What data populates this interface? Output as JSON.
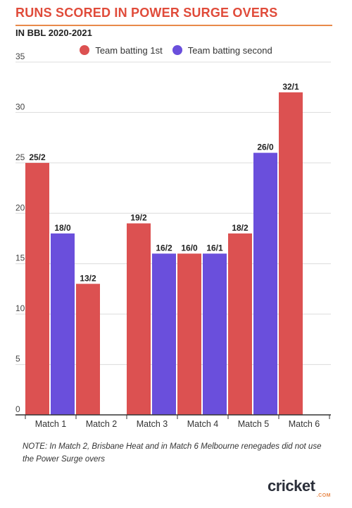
{
  "header": {
    "title": "RUNS SCORED IN POWER SURGE OVERS",
    "subtitle": "IN BBL 2020-2021"
  },
  "note": "NOTE: In Match 2, Brisbane Heat and in Match 6 Melbourne renegades did not use the Power Surge overs",
  "logo": {
    "word": "cricket",
    "suffix": ".COM"
  },
  "colors": {
    "first": "#dc5151",
    "second": "#6a4fdc",
    "accent": "#e04b3a"
  },
  "chart_data": {
    "type": "bar",
    "categories": [
      "Match 1",
      "Match 2",
      "Match 3",
      "Match 4",
      "Match 5",
      "Match 6"
    ],
    "series": [
      {
        "name": "Team batting 1st",
        "values": [
          25,
          13,
          19,
          16,
          18,
          32
        ],
        "labels": [
          "25/2",
          "13/2",
          "19/2",
          "16/0",
          "18/2",
          "32/1"
        ]
      },
      {
        "name": "Team batting second",
        "values": [
          18,
          null,
          16,
          16,
          26,
          null
        ],
        "labels": [
          "18/0",
          "",
          "16/2",
          "16/1",
          "26/0",
          ""
        ]
      }
    ],
    "ylim": [
      0,
      35
    ],
    "yticks": [
      0,
      5,
      10,
      15,
      20,
      25,
      30,
      35
    ],
    "grid": true,
    "legend": "top-center"
  }
}
